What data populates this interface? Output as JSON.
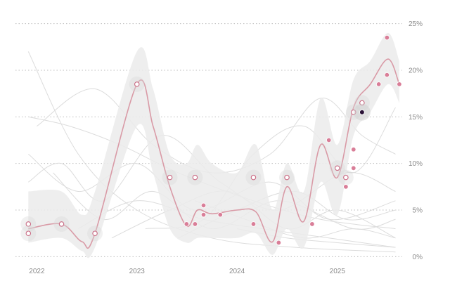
{
  "chart_data": {
    "type": "line",
    "title": "",
    "xlabel": "",
    "ylabel": "",
    "x_ticks": [
      "2022",
      "2023",
      "2024",
      "2025"
    ],
    "y_ticks": [
      "0%",
      "5%",
      "10%",
      "15%",
      "20%",
      "25%"
    ],
    "xlim": [
      "2021-10-15",
      "2025-09-15"
    ],
    "ylim": [
      -0.5,
      25.5
    ],
    "grid": true,
    "colors": {
      "trend_line": "#d99aa6",
      "point_fill": "#d97e98",
      "point_stroke": "#c96982",
      "band": "#ebebeb",
      "background_lines": "#dcdcdc",
      "highlight_point": "#2a1136",
      "grid": "#bdbdbd"
    },
    "trend": [
      {
        "x": "2021-12-01",
        "y": 3.0
      },
      {
        "x": "2022-04-01",
        "y": 3.5
      },
      {
        "x": "2022-06-15",
        "y": 1.6
      },
      {
        "x": "2022-08-01",
        "y": 2.5
      },
      {
        "x": "2023-01-01",
        "y": 18.5
      },
      {
        "x": "2023-03-01",
        "y": 14.0
      },
      {
        "x": "2023-05-01",
        "y": 7.5
      },
      {
        "x": "2023-07-01",
        "y": 3.3
      },
      {
        "x": "2023-08-10",
        "y": 5.0
      },
      {
        "x": "2023-10-01",
        "y": 4.6
      },
      {
        "x": "2024-01-01",
        "y": 5.0
      },
      {
        "x": "2024-03-10",
        "y": 4.8
      },
      {
        "x": "2024-05-10",
        "y": 1.6
      },
      {
        "x": "2024-07-01",
        "y": 7.5
      },
      {
        "x": "2024-09-01",
        "y": 3.8
      },
      {
        "x": "2024-11-01",
        "y": 12.0
      },
      {
        "x": "2025-01-01",
        "y": 8.5
      },
      {
        "x": "2025-03-01",
        "y": 16.0
      },
      {
        "x": "2025-05-01",
        "y": 18.5
      },
      {
        "x": "2025-07-05",
        "y": 21.2
      },
      {
        "x": "2025-08-15",
        "y": 18.5
      }
    ],
    "band": [
      {
        "x": "2021-12-01",
        "low": 1.5,
        "high": 7.0
      },
      {
        "x": "2022-04-01",
        "low": 2.0,
        "high": 7.0
      },
      {
        "x": "2022-06-15",
        "low": 0.6,
        "high": 4.5
      },
      {
        "x": "2022-08-01",
        "low": 1.0,
        "high": 7.0
      },
      {
        "x": "2023-01-01",
        "low": 14.0,
        "high": 22.0
      },
      {
        "x": "2023-03-01",
        "low": 9.0,
        "high": 18.0
      },
      {
        "x": "2023-05-01",
        "low": 3.0,
        "high": 11.0
      },
      {
        "x": "2023-07-01",
        "low": 1.5,
        "high": 10.0
      },
      {
        "x": "2023-08-10",
        "low": 2.0,
        "high": 12.0
      },
      {
        "x": "2023-10-01",
        "low": 2.0,
        "high": 10.0
      },
      {
        "x": "2024-01-01",
        "low": 2.0,
        "high": 9.0
      },
      {
        "x": "2024-03-10",
        "low": 2.5,
        "high": 12.0
      },
      {
        "x": "2024-05-10",
        "low": 0.2,
        "high": 5.0
      },
      {
        "x": "2024-07-01",
        "low": 3.0,
        "high": 10.0
      },
      {
        "x": "2024-09-01",
        "low": 1.0,
        "high": 7.0
      },
      {
        "x": "2024-11-01",
        "low": 8.0,
        "high": 17.0
      },
      {
        "x": "2025-01-01",
        "low": 4.5,
        "high": 12.0
      },
      {
        "x": "2025-03-01",
        "low": 13.0,
        "high": 19.0
      },
      {
        "x": "2025-05-01",
        "low": 15.5,
        "high": 21.0
      },
      {
        "x": "2025-07-05",
        "low": 18.5,
        "high": 24.0
      },
      {
        "x": "2025-08-15",
        "low": 16.5,
        "high": 21.0
      }
    ],
    "points": [
      {
        "x": "2021-12-01",
        "y": 3.5,
        "style": "open"
      },
      {
        "x": "2021-12-01",
        "y": 2.5,
        "style": "open"
      },
      {
        "x": "2022-04-01",
        "y": 3.5,
        "style": "open"
      },
      {
        "x": "2022-08-01",
        "y": 2.5,
        "style": "open"
      },
      {
        "x": "2023-01-01",
        "y": 18.5,
        "style": "open"
      },
      {
        "x": "2023-05-01",
        "y": 8.5,
        "style": "open"
      },
      {
        "x": "2023-07-01",
        "y": 3.5,
        "style": "filled"
      },
      {
        "x": "2023-08-01",
        "y": 8.5,
        "style": "open"
      },
      {
        "x": "2023-08-01",
        "y": 3.5,
        "style": "filled"
      },
      {
        "x": "2023-09-01",
        "y": 5.5,
        "style": "filled"
      },
      {
        "x": "2023-09-01",
        "y": 4.5,
        "style": "filled"
      },
      {
        "x": "2023-11-01",
        "y": 4.5,
        "style": "filled"
      },
      {
        "x": "2024-03-01",
        "y": 8.5,
        "style": "open"
      },
      {
        "x": "2024-03-01",
        "y": 3.5,
        "style": "filled"
      },
      {
        "x": "2024-06-01",
        "y": 1.5,
        "style": "filled"
      },
      {
        "x": "2024-07-01",
        "y": 8.5,
        "style": "open"
      },
      {
        "x": "2024-10-01",
        "y": 3.5,
        "style": "filled"
      },
      {
        "x": "2024-12-01",
        "y": 12.5,
        "style": "filled"
      },
      {
        "x": "2025-01-01",
        "y": 9.5,
        "style": "open"
      },
      {
        "x": "2025-02-01",
        "y": 8.5,
        "style": "open"
      },
      {
        "x": "2025-02-01",
        "y": 7.5,
        "style": "filled"
      },
      {
        "x": "2025-03-01",
        "y": 15.5,
        "style": "open"
      },
      {
        "x": "2025-03-01",
        "y": 11.5,
        "style": "filled"
      },
      {
        "x": "2025-03-01",
        "y": 9.5,
        "style": "filled"
      },
      {
        "x": "2025-04-01",
        "y": 16.5,
        "style": "open"
      },
      {
        "x": "2025-04-01",
        "y": 15.5,
        "style": "highlight"
      },
      {
        "x": "2025-06-01",
        "y": 18.5,
        "style": "filled"
      },
      {
        "x": "2025-07-01",
        "y": 23.5,
        "style": "filled"
      },
      {
        "x": "2025-07-01",
        "y": 19.5,
        "style": "filled"
      },
      {
        "x": "2025-08-15",
        "y": 18.5,
        "style": "filled"
      }
    ],
    "background_series": [
      [
        {
          "x": "2021-12-01",
          "y": 22
        },
        {
          "x": "2022-06-01",
          "y": 11
        },
        {
          "x": "2023-01-01",
          "y": 5
        },
        {
          "x": "2023-10-01",
          "y": 2
        },
        {
          "x": "2024-08-01",
          "y": 1
        },
        {
          "x": "2025-08-01",
          "y": 0.5
        }
      ],
      [
        {
          "x": "2021-12-01",
          "y": 15
        },
        {
          "x": "2022-05-01",
          "y": 14
        },
        {
          "x": "2022-11-01",
          "y": 12
        },
        {
          "x": "2023-06-01",
          "y": 9
        },
        {
          "x": "2024-03-01",
          "y": 6
        },
        {
          "x": "2024-11-01",
          "y": 4
        },
        {
          "x": "2025-08-01",
          "y": 3
        }
      ],
      [
        {
          "x": "2021-12-01",
          "y": 11
        },
        {
          "x": "2022-06-01",
          "y": 7
        },
        {
          "x": "2023-01-01",
          "y": 10
        },
        {
          "x": "2023-08-01",
          "y": 5
        },
        {
          "x": "2024-05-01",
          "y": 8
        },
        {
          "x": "2024-12-01",
          "y": 4
        },
        {
          "x": "2025-08-01",
          "y": 6
        }
      ],
      [
        {
          "x": "2021-12-01",
          "y": 8
        },
        {
          "x": "2022-04-01",
          "y": 10
        },
        {
          "x": "2022-09-01",
          "y": 6
        },
        {
          "x": "2023-04-01",
          "y": 13
        },
        {
          "x": "2023-11-01",
          "y": 8
        },
        {
          "x": "2024-06-01",
          "y": 5
        },
        {
          "x": "2025-02-01",
          "y": 9
        },
        {
          "x": "2025-08-01",
          "y": 7
        }
      ],
      [
        {
          "x": "2022-01-01",
          "y": 14
        },
        {
          "x": "2022-08-01",
          "y": 18
        },
        {
          "x": "2023-03-01",
          "y": 12
        },
        {
          "x": "2023-10-01",
          "y": 9
        },
        {
          "x": "2024-05-01",
          "y": 11
        },
        {
          "x": "2024-11-01",
          "y": 17
        },
        {
          "x": "2025-04-01",
          "y": 13
        },
        {
          "x": "2025-08-01",
          "y": 11
        }
      ],
      [
        {
          "x": "2022-06-01",
          "y": 3
        },
        {
          "x": "2023-01-01",
          "y": 6
        },
        {
          "x": "2023-09-01",
          "y": 4
        },
        {
          "x": "2024-04-01",
          "y": 3
        },
        {
          "x": "2024-12-01",
          "y": 2
        },
        {
          "x": "2025-08-01",
          "y": 1
        }
      ],
      [
        {
          "x": "2022-10-01",
          "y": 2
        },
        {
          "x": "2023-05-01",
          "y": 5
        },
        {
          "x": "2023-12-01",
          "y": 7
        },
        {
          "x": "2024-07-01",
          "y": 3
        },
        {
          "x": "2025-01-01",
          "y": 5
        },
        {
          "x": "2025-08-01",
          "y": 2
        }
      ],
      [
        {
          "x": "2023-02-01",
          "y": 3
        },
        {
          "x": "2023-09-01",
          "y": 4
        },
        {
          "x": "2024-03-01",
          "y": 11
        },
        {
          "x": "2024-09-01",
          "y": 14
        },
        {
          "x": "2025-03-01",
          "y": 9
        },
        {
          "x": "2025-08-01",
          "y": 16
        }
      ],
      [
        {
          "x": "2023-06-01",
          "y": 2
        },
        {
          "x": "2024-01-01",
          "y": 5
        },
        {
          "x": "2024-08-01",
          "y": 7
        },
        {
          "x": "2025-02-01",
          "y": 4
        },
        {
          "x": "2025-08-01",
          "y": 5
        }
      ],
      [
        {
          "x": "2023-08-01",
          "y": 6
        },
        {
          "x": "2024-02-01",
          "y": 4
        },
        {
          "x": "2024-09-01",
          "y": 2
        },
        {
          "x": "2025-03-01",
          "y": 3
        },
        {
          "x": "2025-08-01",
          "y": 2
        }
      ],
      [
        {
          "x": "2024-01-01",
          "y": 3
        },
        {
          "x": "2024-07-01",
          "y": 2
        },
        {
          "x": "2025-01-01",
          "y": 1.5
        },
        {
          "x": "2025-08-01",
          "y": 1
        }
      ],
      [
        {
          "x": "2022-03-01",
          "y": 9
        },
        {
          "x": "2022-09-01",
          "y": 4
        },
        {
          "x": "2023-03-01",
          "y": 7
        },
        {
          "x": "2023-10-01",
          "y": 3
        },
        {
          "x": "2024-06-01",
          "y": 6
        },
        {
          "x": "2025-03-01",
          "y": 3
        },
        {
          "x": "2025-08-01",
          "y": 4
        }
      ]
    ]
  }
}
